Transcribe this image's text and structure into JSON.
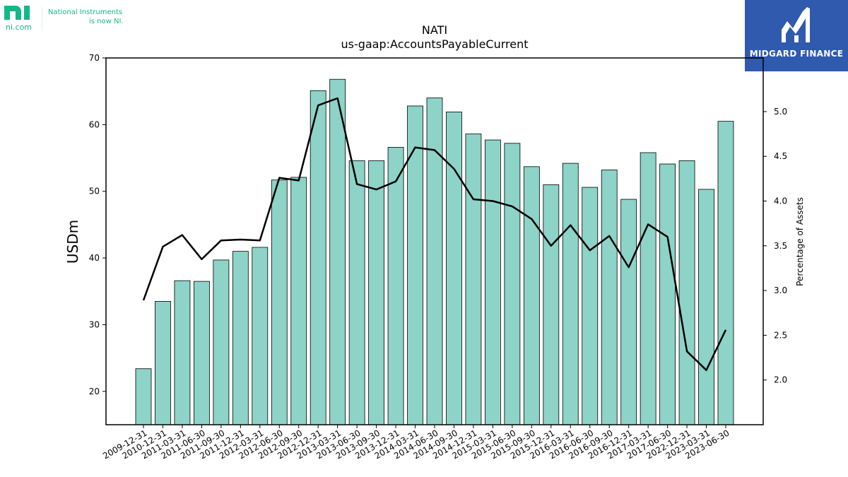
{
  "logos": {
    "ni": {
      "url_text": "ni.com",
      "tagline_line1": "National Instruments",
      "tagline_line2": "is now NI.",
      "color": "#12b886"
    },
    "midgard": {
      "name": "MIDGARD FINANCE",
      "color": "#2f5aae"
    }
  },
  "chart_data": {
    "type": "bar",
    "title": "NATI",
    "subtitle": "us-gaap:AccountsPayableCurrent",
    "ylabel": "USDm",
    "y2label": "Percentage of Assets",
    "ylim": [
      15,
      70
    ],
    "y2lim": [
      1.5,
      5.6
    ],
    "yticks": [
      20,
      30,
      40,
      50,
      60,
      70
    ],
    "y2ticks": [
      2.0,
      2.5,
      3.0,
      3.5,
      4.0,
      4.5,
      5.0
    ],
    "grid": false,
    "bar_color": "#8dd3c7",
    "line_color": "#000000",
    "categories": [
      "2009-12-31",
      "2010-12-31",
      "2011-03-31",
      "2011-06-30",
      "2011-09-30",
      "2011-12-31",
      "2012-03-31",
      "2012-06-30",
      "2012-09-30",
      "2012-12-31",
      "2013-03-31",
      "2013-06-30",
      "2013-09-30",
      "2013-12-31",
      "2014-03-31",
      "2014-06-30",
      "2014-09-30",
      "2014-12-31",
      "2015-03-31",
      "2015-06-30",
      "2015-09-30",
      "2015-12-31",
      "2016-03-31",
      "2016-06-30",
      "2016-09-30",
      "2016-12-31",
      "2017-03-31",
      "2017-06-30",
      "2022-12-31",
      "2023-03-31",
      "2023-06-30"
    ],
    "series": [
      {
        "type": "bar",
        "axis": "left",
        "values": [
          23.4,
          33.5,
          36.6,
          36.5,
          39.7,
          41.0,
          41.6,
          51.7,
          52.1,
          65.1,
          66.8,
          54.6,
          54.6,
          56.6,
          62.8,
          64.0,
          61.9,
          58.6,
          57.7,
          57.2,
          53.7,
          51.0,
          54.2,
          50.6,
          53.2,
          48.8,
          55.8,
          54.1,
          54.6,
          50.3,
          60.5
        ]
      },
      {
        "type": "line",
        "axis": "right",
        "values": [
          2.89,
          3.49,
          3.62,
          3.35,
          3.56,
          3.57,
          3.56,
          4.26,
          4.23,
          5.07,
          5.15,
          4.19,
          4.13,
          4.22,
          4.6,
          4.57,
          4.36,
          4.02,
          4.0,
          3.94,
          3.8,
          3.5,
          3.73,
          3.45,
          3.61,
          3.26,
          3.74,
          3.6,
          2.32,
          2.11,
          2.56
        ]
      }
    ]
  }
}
